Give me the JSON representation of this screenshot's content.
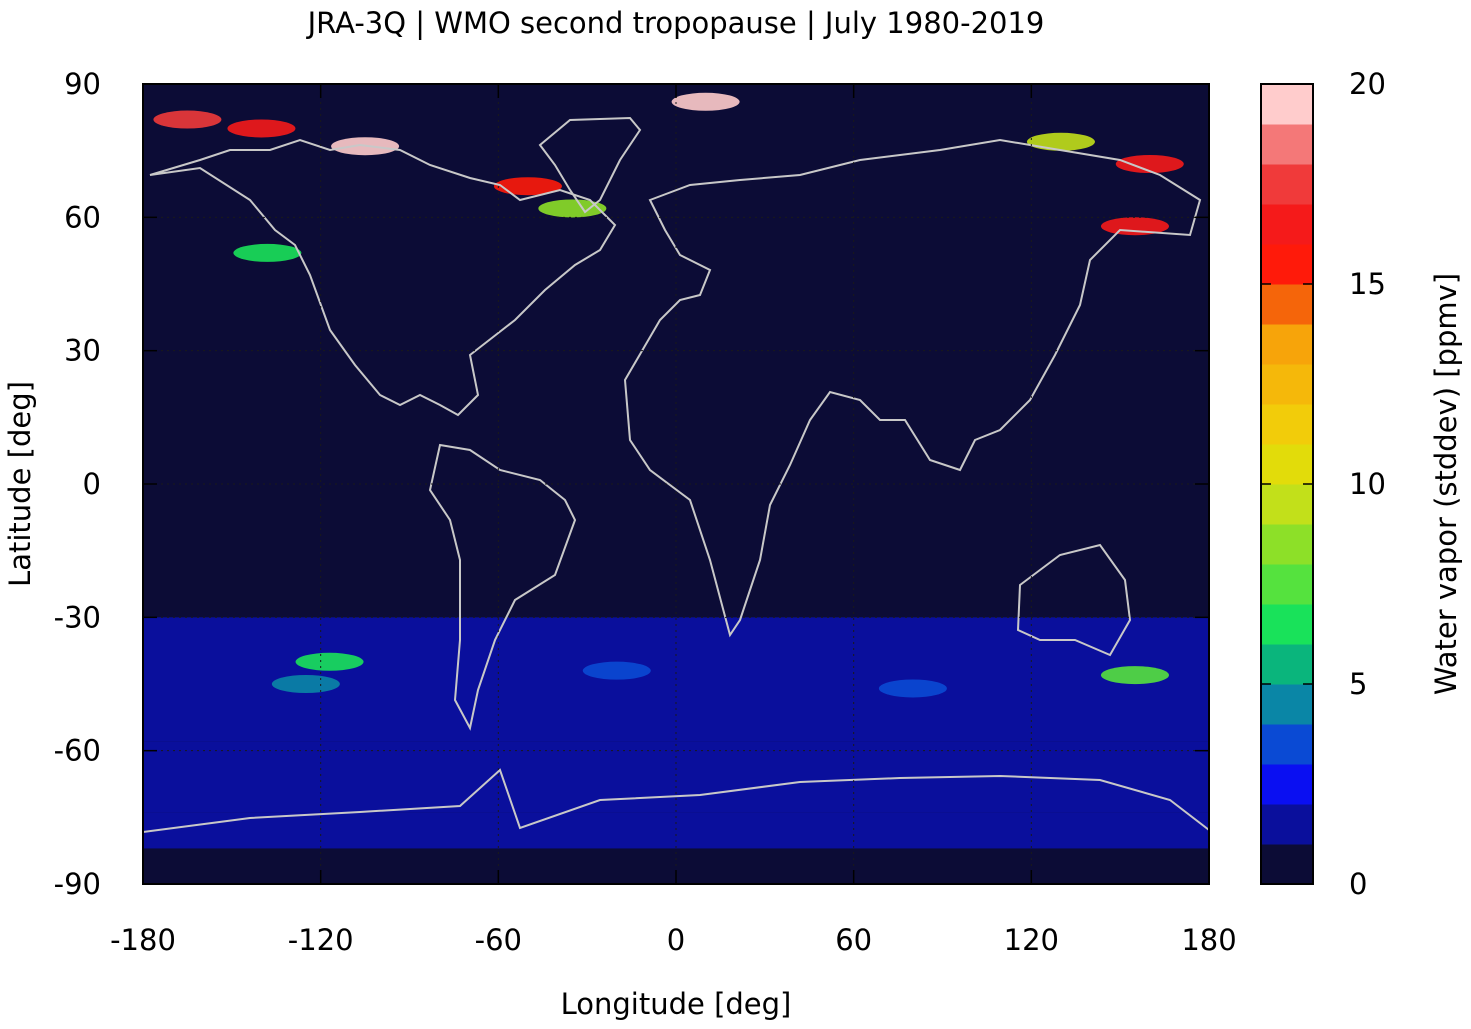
{
  "chart_data": {
    "type": "heatmap",
    "title": "JRA-3Q | WMO second tropopause | July 1980-2019",
    "xlabel": "Longitude [deg]",
    "ylabel": "Latitude [deg]",
    "xlim": [
      -180,
      180
    ],
    "ylim": [
      -90,
      90
    ],
    "x_ticks": [
      "-180",
      "-120",
      "-60",
      "0",
      "60",
      "120",
      "180"
    ],
    "y_ticks": [
      "90",
      "60",
      "30",
      "0",
      "-30",
      "-60",
      "-90"
    ],
    "grid": true,
    "colorbar": {
      "label": "Water vapor (stddev) [ppmv]",
      "range": [
        0,
        20
      ],
      "ticks": [
        "0",
        "5",
        "10",
        "15",
        "20"
      ],
      "colors": [
        "#0c0c36",
        "#0a0f9c",
        "#0a0ff2",
        "#0a4ad4",
        "#0a86a6",
        "#0ab57c",
        "#19e25a",
        "#55e23e",
        "#8de028",
        "#c2e01a",
        "#e2dc0a",
        "#f2cc0a",
        "#f5b80a",
        "#f7a40a",
        "#f5650a",
        "#ff1a0a",
        "#f51a1a",
        "#f03a3a",
        "#f47878",
        "#ffcccc"
      ]
    },
    "field": {
      "background": 0.5,
      "bands": [
        {
          "lat": [
            -90,
            -82
          ],
          "value": 0.5
        },
        {
          "lat": [
            -82,
            -74
          ],
          "value": 1.8
        },
        {
          "lat": [
            -74,
            -58
          ],
          "value": 1.6
        },
        {
          "lat": [
            -58,
            -30
          ],
          "value": 1.3
        }
      ],
      "hotspots": [
        {
          "lon": -165,
          "lat": 82,
          "value": 17.5
        },
        {
          "lon": -140,
          "lat": 80,
          "value": 16
        },
        {
          "lon": -105,
          "lat": 76,
          "value": 19
        },
        {
          "lon": 10,
          "lat": 86,
          "value": 20
        },
        {
          "lon": -50,
          "lat": 67,
          "value": 15
        },
        {
          "lon": -35,
          "lat": 62,
          "value": 8
        },
        {
          "lon": 160,
          "lat": 72,
          "value": 16
        },
        {
          "lon": 155,
          "lat": 58,
          "value": 16
        },
        {
          "lon": 130,
          "lat": 77,
          "value": 9
        },
        {
          "lon": -138,
          "lat": 52,
          "value": 6
        },
        {
          "lon": -117,
          "lat": -40,
          "value": 6
        },
        {
          "lon": -125,
          "lat": -45,
          "value": 4
        },
        {
          "lon": 155,
          "lat": -43,
          "value": 7
        },
        {
          "lon": -20,
          "lat": -42,
          "value": 3.5
        },
        {
          "lon": 80,
          "lat": -46,
          "value": 3.2
        }
      ]
    }
  }
}
